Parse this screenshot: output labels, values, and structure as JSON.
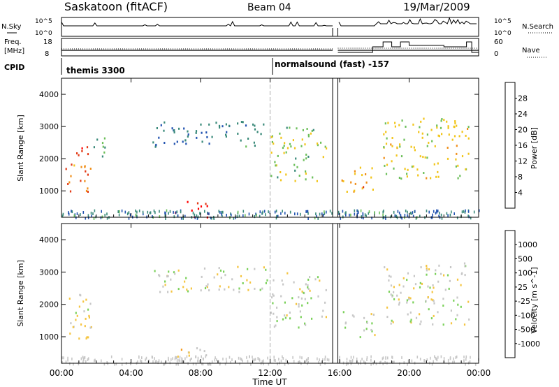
{
  "header": {
    "station": "Saskatoon (fitACF)",
    "beam": "Beam 04",
    "date": "19/Mar/2009"
  },
  "noise_panel": {
    "left_label": "N.Sky",
    "right_label": "N.Search",
    "left_ticks": [
      "10^5",
      "10^0"
    ],
    "right_ticks": [
      "10^5",
      "10^0"
    ]
  },
  "freq_panel": {
    "left_label_1": "Freq.",
    "left_label_2": "[MHz]",
    "right_label": "Nave",
    "left_ticks": [
      "18",
      "8"
    ],
    "right_ticks": [
      "60",
      "0"
    ]
  },
  "cpid": {
    "label": "CPID",
    "modes": [
      {
        "name": "themis 3300",
        "start_hour": 0
      },
      {
        "name": "normalsound (fast) -157",
        "start_hour": 12
      }
    ]
  },
  "time_axis": {
    "label": "Time UT",
    "tick_labels": [
      "00:00",
      "04:00",
      "08:00",
      "12:00",
      "16:00",
      "20:00",
      "00:00"
    ],
    "range_hours": [
      0,
      24
    ],
    "data_gap_hours": [
      15.6,
      15.9
    ]
  },
  "chart_data": [
    {
      "type": "heatmap",
      "title": "",
      "ylabel": "Slant Range [km]",
      "xlabel": "Time UT",
      "xlim_hours": [
        0,
        24
      ],
      "ylim": [
        180,
        4500
      ],
      "y_ticks": [
        1000,
        2000,
        3000,
        4000
      ],
      "colorbar": {
        "label": "Power [dB]",
        "ticks": [
          "28",
          "24",
          "20",
          "16",
          "12",
          "8",
          "4"
        ],
        "range": [
          0,
          30
        ],
        "colors": [
          "#0a1cf0",
          "#2253b0",
          "#3a8a7a",
          "#6cbf5a",
          "#f2c51b",
          "#f08f1a",
          "#e33a16",
          "#ff0000"
        ]
      },
      "echo_regions": [
        {
          "t": [
            0.2,
            1.5
          ],
          "r": [
            2000,
            2400
          ],
          "value": 24
        },
        {
          "t": [
            0.2,
            1.8
          ],
          "r": [
            900,
            1900
          ],
          "value": 22
        },
        {
          "t": [
            1.8,
            2.7
          ],
          "r": [
            1900,
            2700
          ],
          "value": 12
        },
        {
          "t": [
            5.0,
            12.0
          ],
          "r": [
            2400,
            3200
          ],
          "value": 8
        },
        {
          "t": [
            12.0,
            15.2
          ],
          "r": [
            1300,
            3000
          ],
          "value": 14
        },
        {
          "t": [
            6.5,
            8.5
          ],
          "r": [
            200,
            700
          ],
          "value": 26
        },
        {
          "t": [
            16.0,
            18.0
          ],
          "r": [
            1000,
            1800
          ],
          "value": 20
        },
        {
          "t": [
            18.5,
            23.5
          ],
          "r": [
            1400,
            3300
          ],
          "value": 16
        }
      ]
    },
    {
      "type": "heatmap",
      "title": "",
      "ylabel": "Slant Range [km]",
      "xlabel": "Time UT",
      "xlim_hours": [
        0,
        24
      ],
      "ylim": [
        180,
        4500
      ],
      "y_ticks": [
        1000,
        2000,
        3000,
        4000
      ],
      "colorbar": {
        "label": "Velocity [m s^-1]",
        "ticks": [
          "1000",
          "500",
          "100",
          "25",
          "-25",
          "-100",
          "-500",
          "-1000"
        ],
        "range": [
          -1000,
          1000
        ],
        "colors": [
          "#ff0000",
          "#f04a10",
          "#f79a1a",
          "#f5c542",
          "#c7c7c7",
          "#7bd15a",
          "#3a9a3a",
          "#2a5fb8",
          "#1a2fd0"
        ]
      },
      "echo_regions": [
        {
          "t": [
            0.2,
            1.8
          ],
          "r": [
            900,
            2400
          ],
          "value": -80
        },
        {
          "t": [
            5.0,
            12.0
          ],
          "r": [
            2400,
            3200
          ],
          "value": 0
        },
        {
          "t": [
            12.0,
            15.2
          ],
          "r": [
            1300,
            3000
          ],
          "value": 0
        },
        {
          "t": [
            6.5,
            8.5
          ],
          "r": [
            200,
            700
          ],
          "value": -150
        },
        {
          "t": [
            16.0,
            18.0
          ],
          "r": [
            1000,
            1800
          ],
          "value": 0
        },
        {
          "t": [
            18.5,
            23.5
          ],
          "r": [
            1400,
            3300
          ],
          "value": 10
        }
      ]
    }
  ]
}
